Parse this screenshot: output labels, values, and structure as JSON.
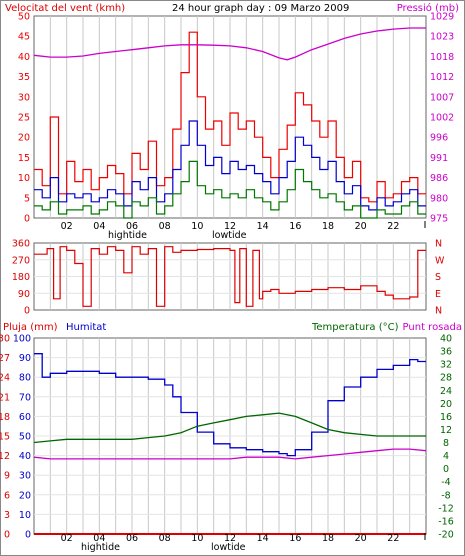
{
  "colors": {
    "wind_avg": "#0000cc",
    "wind_gust": "#ee0000",
    "wind_low": "#007700",
    "pressure": "#cc00cc",
    "direction": "#dd0000",
    "rain": "#dd0000",
    "humidity": "#0000cc",
    "temperature": "#006600",
    "dewpoint": "#cc00cc",
    "grid": "#c8c8c8",
    "frame": "#666666"
  },
  "chart_data": [
    {
      "type": "line",
      "title": "24 hour graph day : 09 Marzo 2009",
      "left_axis_label": "Velocitat del vent (kmh)",
      "right_axis_label": "Pressió (mb)",
      "left_ticks": [
        "0",
        "5",
        "10",
        "15",
        "20",
        "25",
        "30",
        "35",
        "40",
        "45",
        "50"
      ],
      "right_ticks": [
        "975",
        "980",
        "986",
        "991",
        "996",
        "1002",
        "1007",
        "1012",
        "1018",
        "1023",
        "1029"
      ],
      "ylim_left": [
        0,
        50
      ],
      "ylim_right": [
        975,
        1029
      ],
      "x_ticks": [
        "02",
        "04",
        "06",
        "08",
        "10",
        "12",
        "14",
        "16",
        "18",
        "20",
        "22"
      ],
      "x_annotations": [
        "hightide",
        "lowtide"
      ],
      "xlim": [
        0,
        24
      ],
      "grid": true,
      "series": [
        {
          "key": "gust",
          "x": [
            0,
            0.5,
            1,
            1.5,
            2,
            2.5,
            3,
            3.5,
            4,
            4.5,
            5,
            5.5,
            6,
            6.5,
            7,
            7.5,
            8,
            8.5,
            9,
            9.5,
            10,
            10.5,
            11,
            11.5,
            12,
            12.5,
            13,
            13.5,
            14,
            14.5,
            15,
            15.5,
            16,
            16.5,
            17,
            17.5,
            18,
            18.5,
            19,
            19.5,
            20,
            20.5,
            21,
            21.5,
            22,
            22.5,
            23,
            23.5
          ],
          "values": [
            12,
            8,
            25,
            6,
            14,
            9,
            12,
            7,
            10,
            13,
            11,
            6,
            16,
            12,
            19,
            8,
            10,
            22,
            36,
            46,
            30,
            22,
            24,
            18,
            26,
            22,
            24,
            20,
            15,
            10,
            17,
            23,
            31,
            28,
            24,
            20,
            24,
            15,
            10,
            14,
            5,
            4,
            9,
            5,
            6,
            9,
            10,
            6
          ]
        },
        {
          "key": "avg",
          "x": [
            0,
            0.5,
            1,
            1.5,
            2,
            2.5,
            3,
            3.5,
            4,
            4.5,
            5,
            5.5,
            6,
            6.5,
            7,
            7.5,
            8,
            8.5,
            9,
            9.5,
            10,
            10.5,
            11,
            11.5,
            12,
            12.5,
            13,
            13.5,
            14,
            14.5,
            15,
            15.5,
            16,
            16.5,
            17,
            17.5,
            18,
            18.5,
            19,
            19.5,
            20,
            20.5,
            21,
            21.5,
            22,
            22.5,
            23,
            23.5
          ],
          "values": [
            7,
            5,
            10,
            4,
            6,
            5,
            6,
            4,
            5,
            7,
            6,
            3,
            9,
            7,
            10,
            4,
            6,
            12,
            18,
            24,
            18,
            13,
            15,
            11,
            14,
            12,
            13,
            11,
            9,
            6,
            10,
            14,
            20,
            18,
            15,
            12,
            14,
            9,
            6,
            8,
            3,
            2,
            5,
            3,
            4,
            6,
            7,
            3
          ]
        },
        {
          "key": "low",
          "x": [
            0,
            0.5,
            1,
            1.5,
            2,
            2.5,
            3,
            3.5,
            4,
            4.5,
            5,
            5.5,
            6,
            6.5,
            7,
            7.5,
            8,
            8.5,
            9,
            9.5,
            10,
            10.5,
            11,
            11.5,
            12,
            12.5,
            13,
            13.5,
            14,
            14.5,
            15,
            15.5,
            16,
            16.5,
            17,
            17.5,
            18,
            18.5,
            19,
            19.5,
            20,
            20.5,
            21,
            21.5,
            22,
            22.5,
            23,
            23.5
          ],
          "values": [
            3,
            2,
            4,
            1,
            2,
            2,
            3,
            1,
            2,
            4,
            3,
            0,
            4,
            3,
            5,
            1,
            3,
            6,
            9,
            14,
            8,
            6,
            7,
            5,
            6,
            5,
            7,
            5,
            4,
            2,
            4,
            7,
            12,
            9,
            7,
            5,
            6,
            4,
            2,
            3,
            0,
            0,
            2,
            1,
            1,
            3,
            4,
            1
          ]
        },
        {
          "key": "pressure",
          "x": [
            0,
            1,
            2,
            3,
            4,
            5,
            6,
            7,
            8,
            9,
            10,
            11,
            12,
            13,
            14,
            15,
            15.5,
            16,
            17,
            18,
            19,
            20,
            21,
            22,
            23,
            24
          ],
          "values": [
            1018.5,
            1018,
            1018,
            1018.3,
            1019,
            1019.5,
            1020,
            1020.5,
            1021,
            1021.3,
            1021.3,
            1021.2,
            1021,
            1020.5,
            1019.5,
            1017.8,
            1017.3,
            1018,
            1020,
            1021.5,
            1023,
            1024.2,
            1025,
            1025.5,
            1025.8,
            1025.8
          ]
        }
      ]
    },
    {
      "type": "line",
      "left_ticks": [
        "0",
        "90",
        "180",
        "270",
        "360"
      ],
      "right_ticks": [
        "N",
        "E",
        "S",
        "W",
        "N"
      ],
      "ylim": [
        0,
        360
      ],
      "xlim": [
        0,
        24
      ],
      "grid": true,
      "series": [
        {
          "key": "direction",
          "x": [
            0,
            0.8,
            1.2,
            1.6,
            2,
            2.5,
            3,
            3.5,
            4,
            4.5,
            5,
            5.5,
            6,
            6.5,
            7,
            7.5,
            8,
            8.5,
            9,
            10,
            11,
            12,
            12.3,
            12.6,
            13,
            13.4,
            13.8,
            14,
            14.5,
            15,
            16,
            17,
            18,
            19,
            20,
            21,
            21.5,
            22,
            23,
            23.5
          ],
          "values": [
            300,
            330,
            60,
            340,
            320,
            250,
            20,
            330,
            300,
            340,
            320,
            200,
            340,
            300,
            330,
            20,
            340,
            310,
            320,
            325,
            330,
            320,
            40,
            330,
            20,
            320,
            60,
            100,
            110,
            90,
            100,
            110,
            120,
            110,
            130,
            100,
            80,
            60,
            70,
            320
          ]
        }
      ]
    },
    {
      "type": "line",
      "left_axis_label": "Pluja (mm)",
      "left2_axis_label": "Humitat",
      "right_axis_label": "Temperatura (°C)",
      "right2_axis_label": "Punt rosada",
      "rain_ticks": [
        "0",
        "3",
        "6",
        "9",
        "12",
        "15",
        "18",
        "21",
        "24",
        "27",
        "30"
      ],
      "humidity_ticks": [
        "0",
        "10",
        "20",
        "30",
        "40",
        "50",
        "60",
        "70",
        "80",
        "90",
        "100"
      ],
      "temp_ticks": [
        "-20",
        "-16",
        "-12",
        "-8",
        "-4",
        "0",
        "4",
        "8",
        "12",
        "16",
        "20",
        "24",
        "28",
        "32",
        "36",
        "40"
      ],
      "ylim_rain": [
        0,
        30
      ],
      "ylim_humidity": [
        0,
        100
      ],
      "ylim_temp": [
        -20,
        40
      ],
      "x_ticks": [
        "02",
        "04",
        "06",
        "08",
        "10",
        "12",
        "14",
        "16",
        "18",
        "20",
        "22"
      ],
      "x_annotations": [
        "hightide",
        "lowtide"
      ],
      "xlim": [
        0,
        24
      ],
      "grid": true,
      "series": [
        {
          "key": "humidity",
          "x": [
            0,
            0.5,
            1,
            2,
            3,
            4,
            5,
            6,
            7,
            8,
            8.5,
            9,
            10,
            11,
            12,
            13,
            14,
            15,
            15.5,
            16,
            17,
            18,
            19,
            20,
            21,
            22,
            23,
            23.5
          ],
          "values": [
            92,
            80,
            82,
            83,
            83,
            82,
            80,
            80,
            79,
            76,
            70,
            62,
            52,
            46,
            44,
            43,
            42,
            41,
            40,
            43,
            52,
            68,
            75,
            80,
            84,
            86,
            89,
            88
          ]
        },
        {
          "key": "temperature",
          "x": [
            0,
            1,
            2,
            3,
            4,
            5,
            6,
            7,
            8,
            9,
            10,
            11,
            12,
            13,
            14,
            15,
            16,
            17,
            18,
            19,
            20,
            21,
            22,
            23,
            24
          ],
          "values": [
            8,
            8.5,
            9,
            9,
            9,
            9,
            9,
            9.5,
            10,
            11,
            13,
            14,
            15,
            16,
            16.5,
            17,
            16,
            14,
            12,
            11,
            10.5,
            10,
            10,
            10,
            10
          ]
        },
        {
          "key": "dewpoint",
          "x": [
            0,
            1,
            2,
            3,
            4,
            5,
            6,
            7,
            8,
            9,
            10,
            11,
            12,
            13,
            14,
            15,
            16,
            17,
            18,
            19,
            20,
            21,
            22,
            23,
            24
          ],
          "values": [
            3.5,
            3,
            3,
            3,
            3,
            3,
            3,
            3,
            3,
            3,
            3,
            3,
            3,
            3.5,
            3.5,
            3.5,
            3,
            3.5,
            4,
            4.5,
            5,
            5.5,
            6,
            6,
            5.5
          ]
        },
        {
          "key": "rain",
          "x": [
            0,
            24
          ],
          "values": [
            0,
            0
          ]
        }
      ]
    }
  ]
}
